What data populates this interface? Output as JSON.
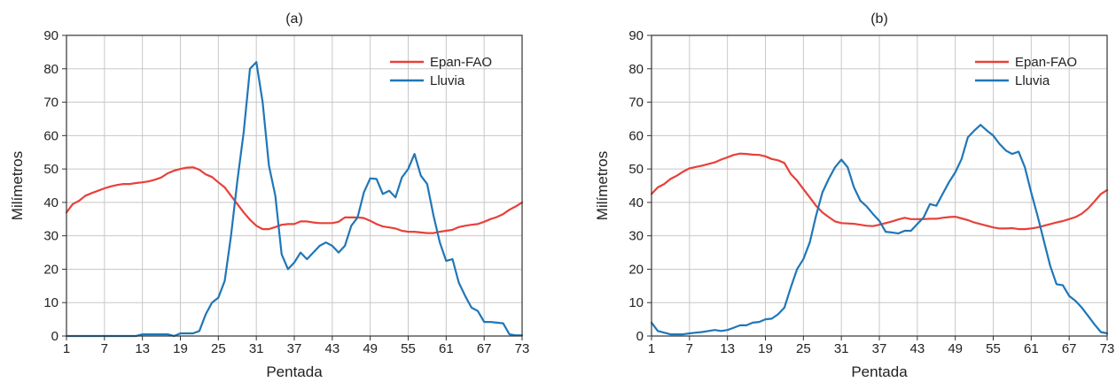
{
  "chart_data": [
    {
      "type": "line",
      "title": "(a)",
      "xlabel": "Pentada",
      "ylabel": "Milímetros",
      "xticks": [
        1,
        7,
        13,
        19,
        25,
        31,
        37,
        43,
        49,
        55,
        61,
        67,
        73
      ],
      "yticks": [
        0,
        10,
        20,
        30,
        40,
        50,
        60,
        70,
        80,
        90
      ],
      "xlim": [
        1,
        73
      ],
      "ylim": [
        0,
        90
      ],
      "grid": true,
      "legend_position": "top-right",
      "series": [
        {
          "name": "Epan-FAO",
          "color": "#e8403a",
          "x": [
            1,
            2,
            3,
            4,
            5,
            6,
            7,
            8,
            9,
            10,
            11,
            12,
            13,
            14,
            15,
            16,
            17,
            18,
            19,
            20,
            21,
            22,
            23,
            24,
            25,
            26,
            27,
            28,
            29,
            30,
            31,
            32,
            33,
            34,
            35,
            36,
            37,
            38,
            39,
            40,
            41,
            42,
            43,
            44,
            45,
            46,
            47,
            48,
            49,
            50,
            51,
            52,
            53,
            54,
            55,
            56,
            57,
            58,
            59,
            60,
            61,
            62,
            63,
            64,
            65,
            66,
            67,
            68,
            69,
            70,
            71,
            72,
            73
          ],
          "y": [
            37,
            39.5,
            40.5,
            42,
            42.8,
            43.5,
            44.2,
            44.8,
            45.2,
            45.5,
            45.5,
            45.8,
            46,
            46.3,
            46.8,
            47.5,
            48.7,
            49.5,
            50,
            50.4,
            50.5,
            49.8,
            48.4,
            47.6,
            46,
            44.5,
            42,
            39.5,
            37,
            34.8,
            33,
            32,
            32,
            32.6,
            33.3,
            33.5,
            33.5,
            34.3,
            34.3,
            34,
            33.8,
            33.8,
            33.8,
            34.2,
            35.5,
            35.5,
            35.5,
            35.3,
            34.5,
            33.5,
            32.8,
            32.5,
            32.2,
            31.5,
            31.2,
            31.2,
            31,
            30.8,
            30.8,
            31.2,
            31.5,
            31.8,
            32.6,
            33,
            33.3,
            33.5,
            34.2,
            35,
            35.6,
            36.5,
            37.8,
            38.8,
            40
          ]
        },
        {
          "name": "Lluvia",
          "color": "#1f77b8",
          "x": [
            1,
            2,
            3,
            4,
            5,
            6,
            7,
            8,
            9,
            10,
            11,
            12,
            13,
            14,
            15,
            16,
            17,
            18,
            19,
            20,
            21,
            22,
            23,
            24,
            25,
            26,
            27,
            28,
            29,
            30,
            31,
            32,
            33,
            34,
            35,
            36,
            37,
            38,
            39,
            40,
            41,
            42,
            43,
            44,
            45,
            46,
            47,
            48,
            49,
            50,
            51,
            52,
            53,
            54,
            55,
            56,
            57,
            58,
            59,
            60,
            61,
            62,
            63,
            64,
            65,
            66,
            67,
            68,
            69,
            70,
            71,
            72,
            73
          ],
          "y": [
            0,
            0,
            0,
            0,
            0,
            0,
            0,
            0,
            0,
            0,
            0,
            0,
            0.5,
            0.5,
            0.5,
            0.5,
            0.5,
            0,
            0.8,
            0.8,
            0.8,
            1.5,
            6.5,
            10,
            11.5,
            16.5,
            30,
            46.5,
            61,
            80,
            82,
            70,
            51,
            42,
            24.5,
            20,
            22,
            25,
            23,
            25,
            27,
            28,
            27,
            25,
            27,
            33,
            35.5,
            43,
            47.2,
            47,
            42.5,
            43.5,
            41.5,
            47.5,
            50,
            54.5,
            48,
            45.5,
            36,
            28,
            22.5,
            23,
            16,
            12,
            8.5,
            7.5,
            4.2,
            4.2,
            4,
            3.8,
            0.5,
            0.2,
            0.2
          ]
        }
      ]
    },
    {
      "type": "line",
      "title": "(b)",
      "xlabel": "Pentada",
      "ylabel": "Milímetros",
      "xticks": [
        1,
        7,
        13,
        19,
        25,
        31,
        37,
        43,
        49,
        55,
        61,
        67,
        73
      ],
      "yticks": [
        0,
        10,
        20,
        30,
        40,
        50,
        60,
        70,
        80,
        90
      ],
      "xlim": [
        1,
        73
      ],
      "ylim": [
        0,
        90
      ],
      "grid": true,
      "legend_position": "top-right",
      "series": [
        {
          "name": "Epan-FAO",
          "color": "#e8403a",
          "x": [
            1,
            2,
            3,
            4,
            5,
            6,
            7,
            8,
            9,
            10,
            11,
            12,
            13,
            14,
            15,
            16,
            17,
            18,
            19,
            20,
            21,
            22,
            23,
            24,
            25,
            26,
            27,
            28,
            29,
            30,
            31,
            32,
            33,
            34,
            35,
            36,
            37,
            38,
            39,
            40,
            41,
            42,
            43,
            44,
            45,
            46,
            47,
            48,
            49,
            50,
            51,
            52,
            53,
            54,
            55,
            56,
            57,
            58,
            59,
            60,
            61,
            62,
            63,
            64,
            65,
            66,
            67,
            68,
            69,
            70,
            71,
            72,
            73
          ],
          "y": [
            42.5,
            44.5,
            45.5,
            47,
            48,
            49.2,
            50.2,
            50.6,
            51,
            51.5,
            52,
            52.8,
            53.5,
            54.2,
            54.6,
            54.5,
            54.3,
            54.2,
            53.8,
            53,
            52.6,
            51.8,
            48.5,
            46.5,
            44,
            41.5,
            39,
            37,
            35.6,
            34.3,
            33.8,
            33.7,
            33.6,
            33.3,
            33,
            32.9,
            33.3,
            33.8,
            34.3,
            34.9,
            35.4,
            35,
            35,
            35,
            35.1,
            35.1,
            35.4,
            35.6,
            35.7,
            35.2,
            34.7,
            34,
            33.5,
            33,
            32.5,
            32.2,
            32.2,
            32.3,
            32,
            32,
            32.2,
            32.5,
            33,
            33.5,
            34,
            34.4,
            35,
            35.6,
            36.6,
            38.2,
            40.3,
            42.5,
            43.7
          ]
        },
        {
          "name": "Lluvia",
          "color": "#1f77b8",
          "x": [
            1,
            2,
            3,
            4,
            5,
            6,
            7,
            8,
            9,
            10,
            11,
            12,
            13,
            14,
            15,
            16,
            17,
            18,
            19,
            20,
            21,
            22,
            23,
            24,
            25,
            26,
            27,
            28,
            29,
            30,
            31,
            32,
            33,
            34,
            35,
            36,
            37,
            38,
            39,
            40,
            41,
            42,
            43,
            44,
            45,
            46,
            47,
            48,
            49,
            50,
            51,
            52,
            53,
            54,
            55,
            56,
            57,
            58,
            59,
            60,
            61,
            62,
            63,
            64,
            65,
            66,
            67,
            68,
            69,
            70,
            71,
            72,
            73
          ],
          "y": [
            4,
            1.5,
            1,
            0.5,
            0.5,
            0.5,
            0.8,
            1,
            1.2,
            1.5,
            1.8,
            1.5,
            1.8,
            2.5,
            3.2,
            3.2,
            4,
            4.2,
            5,
            5.2,
            6.5,
            8.5,
            14.5,
            20,
            23,
            28,
            36,
            43,
            47,
            50.5,
            52.8,
            50.5,
            44.5,
            40.5,
            38.8,
            36.5,
            34.5,
            31.2,
            31,
            30.7,
            31.5,
            31.5,
            33.5,
            35.5,
            39.5,
            39,
            42.5,
            46,
            49,
            53,
            59.5,
            61.5,
            63.2,
            61.5,
            60,
            57.5,
            55.5,
            54.5,
            55.2,
            50.5,
            43,
            36,
            28.5,
            21,
            15.5,
            15.2,
            12,
            10.5,
            8.5,
            6,
            3.5,
            1.2,
            0.8
          ]
        }
      ]
    }
  ]
}
